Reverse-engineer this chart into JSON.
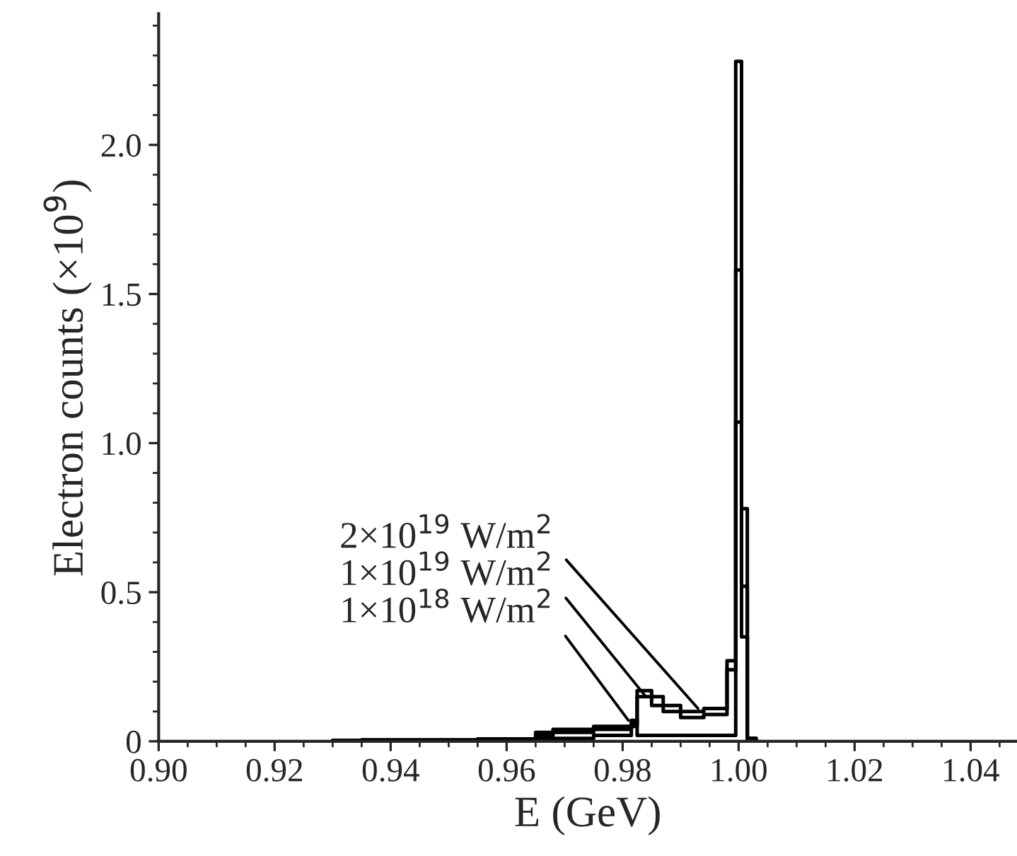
{
  "chart_data": {
    "type": "step",
    "xlabel": "E (GeV)",
    "ylabel": "Electron counts (×10$^{9}$)",
    "series": [
      {
        "color": "#000000",
        "x": [
          0.955,
          0.965,
          0.968,
          0.975,
          0.9815,
          0.9825,
          0.985,
          0.987,
          0.99,
          0.994,
          0.998,
          0.9995,
          1.0005,
          1.0015,
          1.003
        ],
        "values": [
          0.005,
          0.03,
          0.04,
          0.05,
          0.06,
          0.17,
          0.15,
          0.12,
          0.1,
          0.11,
          0.27,
          2.28,
          0.78,
          0.01,
          0
        ]
      },
      {
        "color": "#000000",
        "x": [
          0.955,
          0.965,
          0.968,
          0.975,
          0.9815,
          0.9825,
          0.985,
          0.987,
          0.99,
          0.994,
          0.998,
          0.9995,
          1.0005,
          1.0015,
          1.003
        ],
        "values": [
          0.005,
          0.02,
          0.03,
          0.04,
          0.05,
          0.15,
          0.12,
          0.1,
          0.08,
          0.09,
          0.24,
          1.58,
          0.52,
          0.01,
          0
        ]
      },
      {
        "color": "#000000",
        "x": [
          0.93,
          0.935,
          0.955,
          0.965,
          0.975,
          0.9815,
          0.9825,
          0.998,
          0.9995,
          1.0005,
          1.0015,
          1.003
        ],
        "values": [
          0.003,
          0.005,
          0.008,
          0.01,
          0.02,
          0.07,
          0.02,
          0.02,
          1.07,
          0.35,
          0.01,
          0
        ]
      }
    ],
    "xlim": [
      0.9,
      1.048
    ],
    "ylim": [
      0,
      2.44
    ],
    "xticks": [
      {
        "value": 0.9,
        "label": "0.90"
      },
      {
        "value": 0.92,
        "label": "0.92"
      },
      {
        "value": 0.94,
        "label": "0.94"
      },
      {
        "value": 0.96,
        "label": "0.96"
      },
      {
        "value": 0.98,
        "label": "0.98"
      },
      {
        "value": 1.0,
        "label": "1.00"
      },
      {
        "value": 1.02,
        "label": "1.02"
      },
      {
        "value": 1.04,
        "label": "1.04"
      }
    ],
    "yticks": [
      {
        "value": 0,
        "label": "0"
      },
      {
        "value": 0.5,
        "label": "0.5"
      },
      {
        "value": 1.0,
        "label": "1.0"
      },
      {
        "value": 1.5,
        "label": "1.5"
      },
      {
        "value": 2.0,
        "label": "2.0"
      }
    ],
    "annotations": [
      {
        "text": "2×10$^{19}$ W/m$^{2}$",
        "x": 0.993,
        "y": 0.11
      },
      {
        "text": "1×10$^{19}$ W/m$^{2}$",
        "x": 0.984,
        "y": 0.15
      },
      {
        "text": "1×10$^{18}$ W/m$^{2}$",
        "x": 0.981,
        "y": 0.07
      }
    ],
    "grid": false,
    "legend": false
  }
}
